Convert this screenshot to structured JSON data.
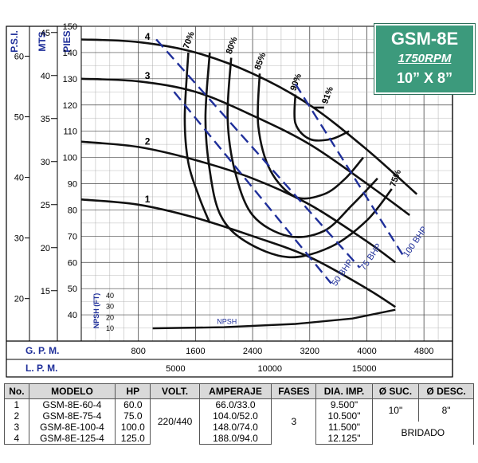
{
  "header": {
    "model": "GSM-8E",
    "rpm": "1750RPM",
    "size": "10” X 8”"
  },
  "colors": {
    "curve": "#111111",
    "bhp": "#1f2f9a",
    "axis_text": "#1f2f9a",
    "header_bg": "#3c9a7c"
  },
  "chart_data": {
    "type": "line",
    "x_axes": [
      {
        "label": "G. P. M.",
        "ticks": [
          800,
          1600,
          2400,
          3200,
          4000,
          4800
        ],
        "range": [
          0,
          5200
        ]
      },
      {
        "label": "L. P. M.",
        "ticks": [
          5000,
          10000,
          15000
        ]
      }
    ],
    "y_axes": [
      {
        "label": "P.S.I.",
        "ticks": [
          20,
          30,
          40,
          50,
          60
        ]
      },
      {
        "label": "MTS",
        "ticks": [
          15,
          20,
          25,
          30,
          35,
          40,
          45
        ]
      },
      {
        "label": "PIES",
        "ticks": [
          40,
          50,
          60,
          70,
          80,
          90,
          100,
          110,
          120,
          130,
          140,
          150
        ],
        "range": [
          30,
          150
        ]
      }
    ],
    "head_curves": [
      {
        "name": "1",
        "x": [
          0,
          800,
          1600,
          2400,
          3200,
          4000,
          4400
        ],
        "y": [
          84,
          82,
          77,
          70,
          62,
          50,
          43
        ]
      },
      {
        "name": "2",
        "x": [
          0,
          800,
          1600,
          2400,
          3200,
          4000,
          4400
        ],
        "y": [
          106,
          104,
          99,
          92,
          82,
          68,
          60
        ]
      },
      {
        "name": "3",
        "x": [
          0,
          800,
          1600,
          2400,
          3200,
          4000,
          4600
        ],
        "y": [
          130,
          129,
          125,
          116,
          105,
          90,
          78
        ]
      },
      {
        "name": "4",
        "x": [
          0,
          800,
          1600,
          2400,
          3200,
          4000,
          4700
        ],
        "y": [
          145,
          144,
          140,
          132,
          120,
          103,
          86
        ]
      }
    ],
    "efficiency_curves": [
      {
        "label": "70%",
        "x": [
          1500,
          1450,
          1500,
          1650,
          1800
        ],
        "y": [
          140,
          115,
          98,
          85,
          75
        ]
      },
      {
        "label": "75%",
        "x": [
          1800,
          1740,
          1800,
          1950,
          2300,
          2900,
          3500,
          4000,
          4350
        ],
        "y": [
          140,
          115,
          95,
          78,
          68,
          62,
          66,
          76,
          88
        ]
      },
      {
        "label": "80%",
        "x": [
          2100,
          2050,
          2150,
          2400,
          2900,
          3400,
          3800,
          4150
        ],
        "y": [
          138,
          115,
          95,
          78,
          70,
          72,
          82,
          92
        ]
      },
      {
        "label": "85%",
        "x": [
          2500,
          2480,
          2650,
          3000,
          3400,
          3700,
          3950
        ],
        "y": [
          132,
          112,
          95,
          85,
          86,
          92,
          100
        ]
      },
      {
        "label": "90%",
        "x": [
          3000,
          3000,
          3200,
          3500,
          3750
        ],
        "y": [
          124,
          113,
          107,
          107,
          110
        ]
      },
      {
        "label": "91%",
        "x": [
          3250,
          3400
        ],
        "y": [
          119,
          119
        ]
      }
    ],
    "bhp_lines": [
      {
        "label": "50 BHP",
        "x": [
          1300,
          3500
        ],
        "y": [
          125,
          52
        ]
      },
      {
        "label": "75 BHP",
        "x": [
          1050,
          3900
        ],
        "y": [
          145,
          58
        ]
      },
      {
        "label": "100 BHP",
        "x": [
          3000,
          4500
        ],
        "y": [
          128,
          63
        ]
      }
    ],
    "npsh": {
      "label": "NPSH",
      "axis_label": "NPSH (FT)",
      "ticks": [
        10,
        20,
        30,
        40
      ],
      "x": [
        1000,
        2000,
        3000,
        3800,
        4400
      ],
      "y": [
        10,
        11,
        14,
        19,
        27
      ]
    }
  },
  "table": {
    "headers": [
      "No.",
      "MODELO",
      "HP",
      "VOLT.",
      "AMPERAJE",
      "FASES",
      "DIA. IMP.",
      "Ø SUC.",
      "Ø DESC."
    ],
    "rows": [
      {
        "no": "1",
        "modelo": "GSM-8E-60-4",
        "hp": "60.0",
        "amp": "66.0/33.0",
        "dia": "9.500\""
      },
      {
        "no": "2",
        "modelo": "GSM-8E-75-4",
        "hp": "75.0",
        "amp": "104.0/52.0",
        "dia": "10.500\""
      },
      {
        "no": "3",
        "modelo": "GSM-8E-100-4",
        "hp": "100.0",
        "amp": "148.0/74.0",
        "dia": "11.500\""
      },
      {
        "no": "4",
        "modelo": "GSM-8E-125-4",
        "hp": "125.0",
        "amp": "188.0/94.0",
        "dia": "12.125\""
      }
    ],
    "volt": "220/440",
    "fases": "3",
    "suc": "10\"",
    "desc": "8\"",
    "conexion": "BRIDADO"
  }
}
